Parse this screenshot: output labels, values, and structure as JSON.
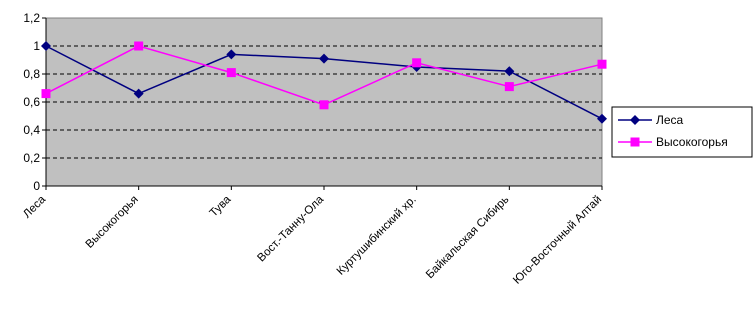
{
  "chart_data": {
    "type": "line",
    "title": "",
    "xlabel": "",
    "ylabel": "",
    "categories": [
      "Леса",
      "Высокогорья",
      "Тува",
      "Вост.-Танну-Ола",
      "Куртушибинский хр.",
      "Байкальская Сибирь",
      "Юго-Восточный Алтай"
    ],
    "y_ticks": [
      "0",
      "0,2",
      "0,4",
      "0,6",
      "0,8",
      "1",
      "1,2"
    ],
    "ylim": [
      0,
      1.2
    ],
    "grid": "horizontal-dashed",
    "legend_placement": "right",
    "plot_background": "#c0c0c0",
    "series": [
      {
        "name": "Леса",
        "color": "#000080",
        "marker": "diamond",
        "values": [
          1.0,
          0.66,
          0.94,
          0.91,
          0.85,
          0.82,
          0.48
        ]
      },
      {
        "name": "Высокогорья",
        "color": "#ff00ff",
        "marker": "square",
        "values": [
          0.66,
          1.0,
          0.81,
          0.58,
          0.88,
          0.71,
          0.87
        ]
      }
    ]
  }
}
